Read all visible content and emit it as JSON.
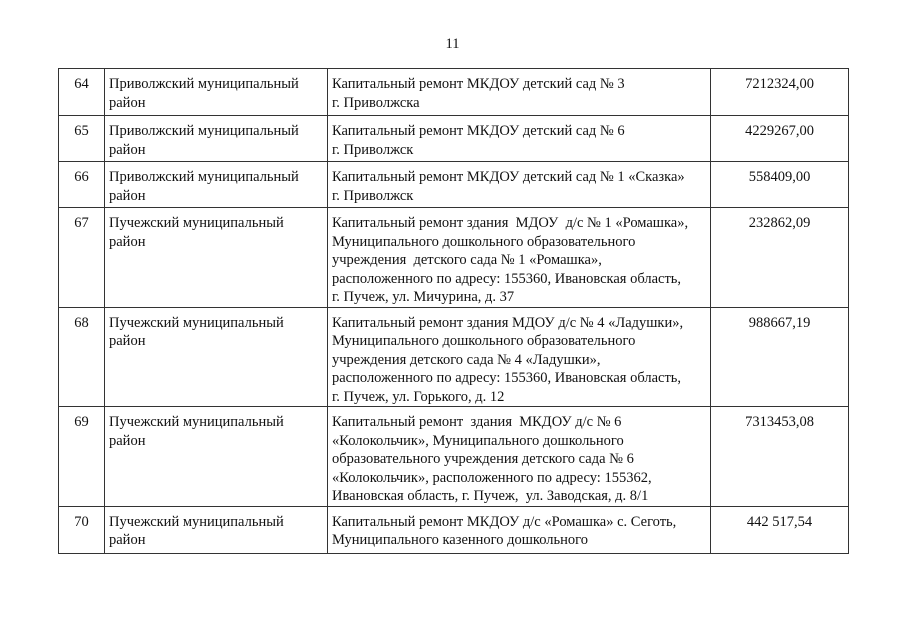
{
  "header": {
    "page_number": "11"
  },
  "table": {
    "rows": [
      {
        "number": "64",
        "district": [
          "Приволжский муниципальный",
          "район"
        ],
        "description": [
          "Капитальный ремонт МКДОУ детский сад № 3",
          "г. Приволжска"
        ],
        "amount": "7212324,00"
      },
      {
        "number": "65",
        "district": [
          "Приволжский муниципальный",
          "район"
        ],
        "description": [
          "Капитальный ремонт МКДОУ детский сад № 6",
          "г. Приволжск"
        ],
        "amount": "4229267,00"
      },
      {
        "number": "66",
        "district": [
          "Приволжский муниципальный",
          "район"
        ],
        "description": [
          "Капитальный ремонт МКДОУ детский сад № 1 «Сказка»",
          "г. Приволжск"
        ],
        "amount": "558409,00"
      },
      {
        "number": "67",
        "district": [
          "Пучежский муниципальный",
          "район"
        ],
        "description": [
          "Капитальный ремонт здания  МДОУ  д/с № 1 «Ромашка»,",
          "Муниципального дошкольного образовательного",
          "учреждения  детского сада № 1 «Ромашка»,",
          "расположенного по адресу: 155360, Ивановская область,",
          "г. Пучеж, ул. Мичурина, д. 37"
        ],
        "amount": "232862,09"
      },
      {
        "number": "68",
        "district": [
          "Пучежский муниципальный",
          "район"
        ],
        "description": [
          "Капитальный ремонт здания МДОУ д/с № 4 «Ладушки»,",
          "Муниципального дошкольного образовательного",
          "учреждения детского сада № 4 «Ладушки»,",
          "расположенного по адресу: 155360, Ивановская область,",
          "г. Пучеж, ул. Горького, д. 12"
        ],
        "amount": "988667,19"
      },
      {
        "number": "69",
        "district": [
          "Пучежский муниципальный",
          "район"
        ],
        "description": [
          "Капитальный ремонт  здания  МКДОУ д/с № 6",
          "«Колокольчик», Муниципального дошкольного",
          "образовательного учреждения детского сада № 6",
          "«Колокольчик», расположенного по адресу: 155362,",
          "Ивановская область, г. Пучеж,  ул. Заводская, д. 8/1"
        ],
        "amount": "7313453,08"
      },
      {
        "number": "70",
        "district": [
          "Пучежский муниципальный",
          "район"
        ],
        "description": [
          "Капитальный ремонт МКДОУ д/с «Ромашка» с. Сеготь,",
          "Муниципального казенного дошкольного"
        ],
        "amount": "442 517,54"
      }
    ]
  }
}
